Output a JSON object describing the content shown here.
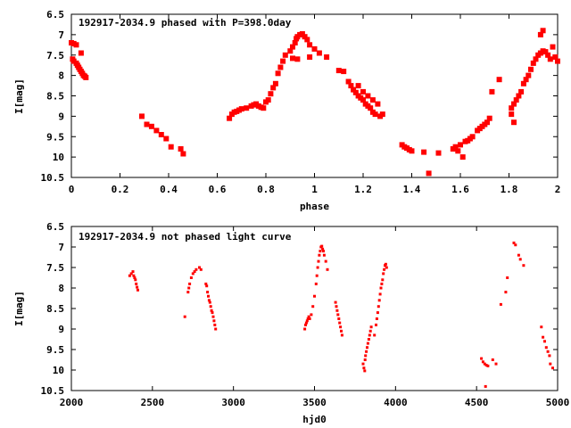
{
  "chart_data": [
    {
      "type": "scatter",
      "title": "192917-2034.9 phased with P=398.0day",
      "xlabel": "phase",
      "ylabel": "I[mag]",
      "xlim": [
        0,
        2
      ],
      "ylim": [
        10.5,
        6.5
      ],
      "y_inverted": true,
      "grid": false,
      "marker": "filled-square",
      "color": "#ff0000",
      "x_ticks": [
        0,
        0.2,
        0.4,
        0.6,
        0.8,
        1,
        1.2,
        1.4,
        1.6,
        1.8,
        2
      ],
      "x_tick_labels": [
        "0",
        "0.2",
        "0.4",
        "0.6",
        "0.8",
        "1",
        "1.2",
        "1.4",
        "1.6",
        "1.8",
        "2"
      ],
      "y_ticks": [
        6.5,
        7,
        7.5,
        8,
        8.5,
        9,
        9.5,
        10,
        10.5
      ],
      "y_tick_labels": [
        "6.5",
        "7",
        "7.5",
        "8",
        "8.5",
        "9",
        "9.5",
        "10",
        "10.5"
      ],
      "points": [
        [
          0.0,
          7.2
        ],
        [
          0.01,
          7.22
        ],
        [
          0.02,
          7.25
        ],
        [
          0.005,
          7.6
        ],
        [
          0.01,
          7.65
        ],
        [
          0.02,
          7.7
        ],
        [
          0.025,
          7.75
        ],
        [
          0.03,
          7.8
        ],
        [
          0.035,
          7.85
        ],
        [
          0.04,
          7.9
        ],
        [
          0.045,
          7.95
        ],
        [
          0.05,
          8.0
        ],
        [
          0.055,
          8.02
        ],
        [
          0.06,
          8.05
        ],
        [
          0.04,
          7.45
        ],
        [
          0.29,
          9.0
        ],
        [
          0.31,
          9.2
        ],
        [
          0.33,
          9.25
        ],
        [
          0.35,
          9.35
        ],
        [
          0.37,
          9.45
        ],
        [
          0.39,
          9.55
        ],
        [
          0.41,
          9.75
        ],
        [
          0.45,
          9.8
        ],
        [
          0.46,
          9.92
        ],
        [
          0.65,
          9.05
        ],
        [
          0.66,
          8.95
        ],
        [
          0.67,
          8.9
        ],
        [
          0.68,
          8.88
        ],
        [
          0.69,
          8.85
        ],
        [
          0.7,
          8.82
        ],
        [
          0.72,
          8.8
        ],
        [
          0.74,
          8.75
        ],
        [
          0.75,
          8.72
        ],
        [
          0.76,
          8.7
        ],
        [
          0.77,
          8.75
        ],
        [
          0.78,
          8.78
        ],
        [
          0.79,
          8.8
        ],
        [
          0.8,
          8.65
        ],
        [
          0.81,
          8.6
        ],
        [
          0.82,
          8.45
        ],
        [
          0.83,
          8.3
        ],
        [
          0.84,
          8.2
        ],
        [
          0.85,
          7.95
        ],
        [
          0.86,
          7.8
        ],
        [
          0.87,
          7.65
        ],
        [
          0.88,
          7.5
        ],
        [
          0.9,
          7.4
        ],
        [
          0.91,
          7.3
        ],
        [
          0.92,
          7.2
        ],
        [
          0.925,
          7.1
        ],
        [
          0.93,
          7.05
        ],
        [
          0.94,
          7.0
        ],
        [
          0.95,
          6.98
        ],
        [
          0.96,
          7.05
        ],
        [
          0.97,
          7.12
        ],
        [
          0.98,
          7.25
        ],
        [
          1.0,
          7.35
        ],
        [
          1.02,
          7.45
        ],
        [
          1.05,
          7.55
        ],
        [
          0.98,
          7.55
        ],
        [
          0.93,
          7.6
        ],
        [
          0.91,
          7.58
        ],
        [
          1.1,
          7.88
        ],
        [
          1.12,
          7.9
        ],
        [
          1.14,
          8.15
        ],
        [
          1.15,
          8.25
        ],
        [
          1.16,
          8.35
        ],
        [
          1.17,
          8.42
        ],
        [
          1.18,
          8.5
        ],
        [
          1.19,
          8.55
        ],
        [
          1.2,
          8.6
        ],
        [
          1.21,
          8.7
        ],
        [
          1.22,
          8.75
        ],
        [
          1.23,
          8.8
        ],
        [
          1.24,
          8.9
        ],
        [
          1.25,
          8.95
        ],
        [
          1.18,
          8.25
        ],
        [
          1.2,
          8.4
        ],
        [
          1.22,
          8.5
        ],
        [
          1.24,
          8.6
        ],
        [
          1.26,
          8.7
        ],
        [
          1.27,
          9.0
        ],
        [
          1.28,
          8.95
        ],
        [
          1.36,
          9.7
        ],
        [
          1.37,
          9.75
        ],
        [
          1.38,
          9.78
        ],
        [
          1.39,
          9.82
        ],
        [
          1.4,
          9.85
        ],
        [
          1.45,
          9.88
        ],
        [
          1.47,
          10.4
        ],
        [
          1.51,
          9.9
        ],
        [
          1.57,
          9.8
        ],
        [
          1.58,
          9.75
        ],
        [
          1.59,
          9.85
        ],
        [
          1.6,
          9.7
        ],
        [
          1.61,
          10.0
        ],
        [
          1.62,
          9.62
        ],
        [
          1.63,
          9.6
        ],
        [
          1.64,
          9.55
        ],
        [
          1.65,
          9.5
        ],
        [
          1.67,
          9.35
        ],
        [
          1.68,
          9.3
        ],
        [
          1.69,
          9.25
        ],
        [
          1.7,
          9.2
        ],
        [
          1.71,
          9.15
        ],
        [
          1.72,
          9.05
        ],
        [
          1.73,
          8.4
        ],
        [
          1.76,
          8.1
        ],
        [
          1.81,
          8.95
        ],
        [
          1.82,
          9.15
        ],
        [
          1.81,
          8.8
        ],
        [
          1.82,
          8.7
        ],
        [
          1.83,
          8.6
        ],
        [
          1.84,
          8.5
        ],
        [
          1.85,
          8.4
        ],
        [
          1.86,
          8.2
        ],
        [
          1.87,
          8.1
        ],
        [
          1.88,
          8.0
        ],
        [
          1.89,
          7.85
        ],
        [
          1.9,
          7.7
        ],
        [
          1.91,
          7.6
        ],
        [
          1.92,
          7.5
        ],
        [
          1.93,
          7.45
        ],
        [
          1.94,
          7.4
        ],
        [
          1.95,
          7.42
        ],
        [
          1.93,
          7.0
        ],
        [
          1.94,
          6.9
        ],
        [
          1.98,
          7.3
        ],
        [
          1.99,
          7.55
        ],
        [
          2.0,
          7.65
        ],
        [
          1.97,
          7.6
        ],
        [
          1.96,
          7.5
        ]
      ]
    },
    {
      "type": "scatter",
      "title": "192917-2034.9 not phased light curve",
      "xlabel": "hjd0",
      "ylabel": "I[mag]",
      "xlim": [
        2000,
        5000
      ],
      "ylim": [
        10.5,
        6.5
      ],
      "y_inverted": true,
      "grid": false,
      "marker": "small-dot",
      "color": "#ff0000",
      "x_ticks": [
        2000,
        2500,
        3000,
        3500,
        4000,
        4500,
        5000
      ],
      "x_tick_labels": [
        "2000",
        "2500",
        "3000",
        "3500",
        "4000",
        "4500",
        "5000"
      ],
      "y_ticks": [
        6.5,
        7,
        7.5,
        8,
        8.5,
        9,
        9.5,
        10,
        10.5
      ],
      "y_tick_labels": [
        "6.5",
        "7",
        "7.5",
        "8",
        "8.5",
        "9",
        "9.5",
        "10",
        "10.5"
      ],
      "points": [
        [
          2360,
          7.7
        ],
        [
          2370,
          7.65
        ],
        [
          2380,
          7.6
        ],
        [
          2385,
          7.7
        ],
        [
          2390,
          7.75
        ],
        [
          2395,
          7.8
        ],
        [
          2400,
          7.9
        ],
        [
          2405,
          7.98
        ],
        [
          2410,
          8.05
        ],
        [
          2700,
          8.7
        ],
        [
          2720,
          8.1
        ],
        [
          2725,
          8.0
        ],
        [
          2730,
          7.9
        ],
        [
          2740,
          7.75
        ],
        [
          2750,
          7.65
        ],
        [
          2760,
          7.6
        ],
        [
          2770,
          7.55
        ],
        [
          2790,
          7.5
        ],
        [
          2800,
          7.55
        ],
        [
          2830,
          7.9
        ],
        [
          2835,
          7.95
        ],
        [
          2840,
          8.1
        ],
        [
          2845,
          8.2
        ],
        [
          2850,
          8.3
        ],
        [
          2855,
          8.35
        ],
        [
          2860,
          8.45
        ],
        [
          2865,
          8.55
        ],
        [
          2870,
          8.6
        ],
        [
          2875,
          8.7
        ],
        [
          2880,
          8.8
        ],
        [
          2885,
          8.9
        ],
        [
          2890,
          9.0
        ],
        [
          3440,
          9.0
        ],
        [
          3445,
          8.9
        ],
        [
          3450,
          8.85
        ],
        [
          3455,
          8.8
        ],
        [
          3460,
          8.75
        ],
        [
          3465,
          8.7
        ],
        [
          3470,
          8.75
        ],
        [
          3480,
          8.65
        ],
        [
          3490,
          8.45
        ],
        [
          3500,
          8.2
        ],
        [
          3510,
          7.9
        ],
        [
          3515,
          7.7
        ],
        [
          3520,
          7.5
        ],
        [
          3525,
          7.35
        ],
        [
          3530,
          7.2
        ],
        [
          3535,
          7.1
        ],
        [
          3540,
          7.0
        ],
        [
          3545,
          6.98
        ],
        [
          3550,
          7.05
        ],
        [
          3555,
          7.1
        ],
        [
          3560,
          7.2
        ],
        [
          3570,
          7.35
        ],
        [
          3580,
          7.55
        ],
        [
          3630,
          8.35
        ],
        [
          3635,
          8.45
        ],
        [
          3640,
          8.55
        ],
        [
          3645,
          8.65
        ],
        [
          3650,
          8.75
        ],
        [
          3655,
          8.85
        ],
        [
          3660,
          8.95
        ],
        [
          3665,
          9.05
        ],
        [
          3670,
          9.15
        ],
        [
          3800,
          9.85
        ],
        [
          3805,
          9.95
        ],
        [
          3810,
          10.02
        ],
        [
          3812,
          9.75
        ],
        [
          3815,
          9.65
        ],
        [
          3820,
          9.55
        ],
        [
          3825,
          9.45
        ],
        [
          3830,
          9.35
        ],
        [
          3835,
          9.25
        ],
        [
          3840,
          9.15
        ],
        [
          3845,
          9.05
        ],
        [
          3850,
          8.95
        ],
        [
          3870,
          9.15
        ],
        [
          3880,
          8.9
        ],
        [
          3885,
          8.75
        ],
        [
          3890,
          8.6
        ],
        [
          3895,
          8.45
        ],
        [
          3900,
          8.3
        ],
        [
          3905,
          8.15
        ],
        [
          3910,
          8.0
        ],
        [
          3915,
          7.9
        ],
        [
          3920,
          7.8
        ],
        [
          3925,
          7.65
        ],
        [
          3930,
          7.55
        ],
        [
          3935,
          7.45
        ],
        [
          3940,
          7.42
        ],
        [
          3945,
          7.5
        ],
        [
          4530,
          9.72
        ],
        [
          4540,
          9.8
        ],
        [
          4550,
          9.85
        ],
        [
          4560,
          9.88
        ],
        [
          4570,
          9.9
        ],
        [
          4555,
          10.4
        ],
        [
          4600,
          9.75
        ],
        [
          4620,
          9.85
        ],
        [
          4650,
          8.4
        ],
        [
          4680,
          8.1
        ],
        [
          4690,
          7.75
        ],
        [
          4730,
          6.9
        ],
        [
          4740,
          6.95
        ],
        [
          4760,
          7.2
        ],
        [
          4770,
          7.3
        ],
        [
          4790,
          7.45
        ],
        [
          4900,
          8.95
        ],
        [
          4910,
          9.2
        ],
        [
          4920,
          9.3
        ],
        [
          4930,
          9.45
        ],
        [
          4940,
          9.55
        ],
        [
          4950,
          9.65
        ],
        [
          4955,
          9.85
        ],
        [
          4970,
          9.95
        ]
      ]
    }
  ]
}
